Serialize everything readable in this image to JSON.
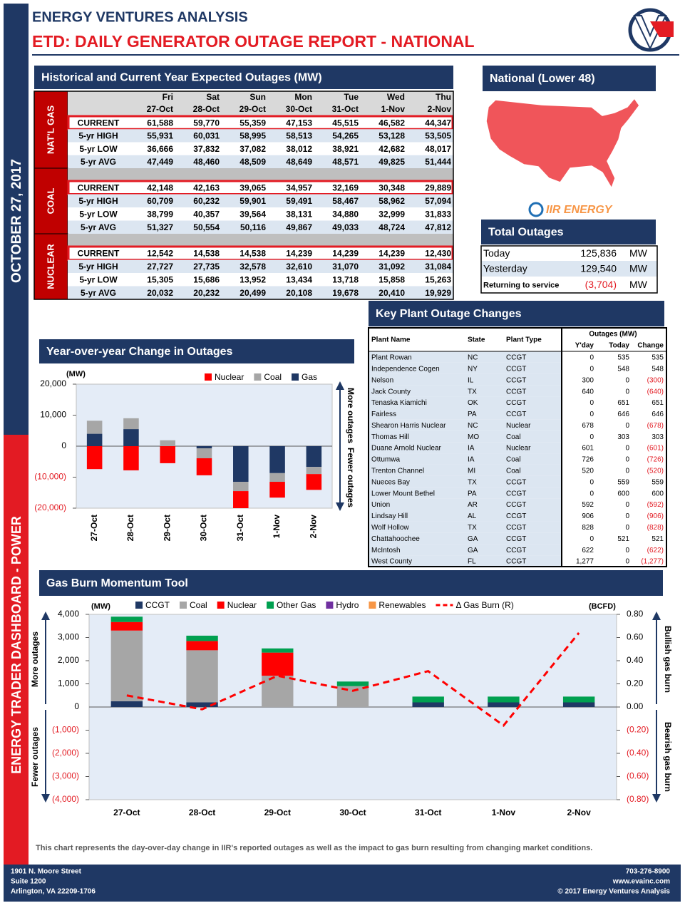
{
  "header": {
    "company": "ENERGY VENTURES ANALYSIS",
    "title": "ETD: DAILY GENERATOR OUTAGE REPORT - NATIONAL"
  },
  "sidebar": {
    "date": "OCTOBER 27, 2017",
    "dashboard": "ENERGY TRADER DASHBOARD - POWER"
  },
  "outage_table": {
    "title": "Historical and Current Year Expected Outages (MW)",
    "days": [
      "Fri",
      "Sat",
      "Sun",
      "Mon",
      "Tue",
      "Wed",
      "Thu"
    ],
    "dates": [
      "27-Oct",
      "28-Oct",
      "29-Oct",
      "30-Oct",
      "31-Oct",
      "1-Nov",
      "2-Nov"
    ],
    "groups": [
      {
        "label": "NAT'L GAS",
        "rows": [
          {
            "label": "CURRENT",
            "values": [
              "61,588",
              "59,770",
              "55,359",
              "47,153",
              "45,515",
              "46,582",
              "44,347"
            ]
          },
          {
            "label": "5-yr HIGH",
            "values": [
              "55,931",
              "60,031",
              "58,995",
              "58,513",
              "54,265",
              "53,128",
              "53,505"
            ]
          },
          {
            "label": "5-yr LOW",
            "values": [
              "36,666",
              "37,832",
              "37,082",
              "38,012",
              "38,921",
              "42,682",
              "48,017"
            ]
          },
          {
            "label": "5-yr AVG",
            "values": [
              "47,449",
              "48,460",
              "48,509",
              "48,649",
              "48,571",
              "49,825",
              "51,444"
            ]
          }
        ]
      },
      {
        "label": "COAL",
        "rows": [
          {
            "label": "CURRENT",
            "values": [
              "42,148",
              "42,163",
              "39,065",
              "34,957",
              "32,169",
              "30,348",
              "29,889"
            ]
          },
          {
            "label": "5-yr HIGH",
            "values": [
              "60,709",
              "60,232",
              "59,901",
              "59,491",
              "58,467",
              "58,962",
              "57,094"
            ]
          },
          {
            "label": "5-yr LOW",
            "values": [
              "38,799",
              "40,357",
              "39,564",
              "38,131",
              "34,880",
              "32,999",
              "31,833"
            ]
          },
          {
            "label": "5-yr AVG",
            "values": [
              "51,327",
              "50,554",
              "50,116",
              "49,867",
              "49,033",
              "48,724",
              "47,812"
            ]
          }
        ]
      },
      {
        "label": "NUCLEAR",
        "rows": [
          {
            "label": "CURRENT",
            "values": [
              "12,542",
              "14,538",
              "14,538",
              "14,239",
              "14,239",
              "14,239",
              "12,430"
            ]
          },
          {
            "label": "5-yr HIGH",
            "values": [
              "27,727",
              "27,735",
              "32,578",
              "32,610",
              "31,070",
              "31,092",
              "31,084"
            ]
          },
          {
            "label": "5-yr LOW",
            "values": [
              "15,305",
              "15,686",
              "13,952",
              "13,434",
              "13,718",
              "15,858",
              "15,263"
            ]
          },
          {
            "label": "5-yr AVG",
            "values": [
              "20,032",
              "20,232",
              "20,499",
              "20,108",
              "19,678",
              "20,410",
              "19,929"
            ]
          }
        ]
      }
    ]
  },
  "map_panel": {
    "title": "National (Lower 48)",
    "logo_text": "IIR ENERGY"
  },
  "total_outages": {
    "title": "Total Outages",
    "rows": [
      {
        "label": "Today",
        "value": "125,836",
        "unit": "MW"
      },
      {
        "label": "Yesterday",
        "value": "129,540",
        "unit": "MW"
      },
      {
        "label": "Returning to service",
        "value": "(3,704)",
        "unit": "MW"
      }
    ]
  },
  "key_plants": {
    "title": "Key Plant Outage Changes",
    "columns": [
      "Plant Name",
      "State",
      "Plant Type"
    ],
    "group_header": "Outages (MW)",
    "value_columns": [
      "Y'day",
      "Today",
      "Change"
    ],
    "rows": [
      [
        "Plant Rowan",
        "NC",
        "CCGT",
        "0",
        "535",
        "535"
      ],
      [
        "Independence Cogen",
        "NY",
        "CCGT",
        "0",
        "548",
        "548"
      ],
      [
        "Nelson",
        "IL",
        "CCGT",
        "300",
        "0",
        "(300)"
      ],
      [
        "Jack County",
        "TX",
        "CCGT",
        "640",
        "0",
        "(640)"
      ],
      [
        "Tenaska Kiamichi",
        "OK",
        "CCGT",
        "0",
        "651",
        "651"
      ],
      [
        "Fairless",
        "PA",
        "CCGT",
        "0",
        "646",
        "646"
      ],
      [
        "Shearon Harris Nuclear",
        "NC",
        "Nuclear",
        "678",
        "0",
        "(678)"
      ],
      [
        "Thomas Hill",
        "MO",
        "Coal",
        "0",
        "303",
        "303"
      ],
      [
        "Duane Arnold Nuclear",
        "IA",
        "Nuclear",
        "601",
        "0",
        "(601)"
      ],
      [
        "Ottumwa",
        "IA",
        "Coal",
        "726",
        "0",
        "(726)"
      ],
      [
        "Trenton Channel",
        "MI",
        "Coal",
        "520",
        "0",
        "(520)"
      ],
      [
        "Nueces Bay",
        "TX",
        "CCGT",
        "0",
        "559",
        "559"
      ],
      [
        "Lower Mount Bethel",
        "PA",
        "CCGT",
        "0",
        "600",
        "600"
      ],
      [
        "Union",
        "AR",
        "CCGT",
        "592",
        "0",
        "(592)"
      ],
      [
        "Lindsay Hill",
        "AL",
        "CCGT",
        "906",
        "0",
        "(906)"
      ],
      [
        "Wolf Hollow",
        "TX",
        "CCGT",
        "828",
        "0",
        "(828)"
      ],
      [
        "Chattahoochee",
        "GA",
        "CCGT",
        "0",
        "521",
        "521"
      ],
      [
        "McIntosh",
        "GA",
        "CCGT",
        "622",
        "0",
        "(622)"
      ],
      [
        "West County",
        "FL",
        "CCGT",
        "1,277",
        "0",
        "(1,277)"
      ]
    ]
  },
  "chart_data": [
    {
      "type": "bar",
      "stacked": true,
      "stack_from": "last",
      "title": "Year-over-year Change in Outages",
      "y_label": "(MW)",
      "categories": [
        "27-Oct",
        "28-Oct",
        "29-Oct",
        "30-Oct",
        "31-Oct",
        "1-Nov",
        "2-Nov"
      ],
      "series": [
        {
          "name": "Nuclear",
          "color": "#ff0000",
          "values": [
            -7400,
            -7800,
            -5500,
            -5500,
            -5500,
            -5100,
            -5100
          ]
        },
        {
          "name": "Coal",
          "color": "#a6a6a6",
          "values": [
            4200,
            3500,
            1900,
            -3200,
            -3000,
            -2800,
            -2300
          ]
        },
        {
          "name": "Gas",
          "color": "#1f3864",
          "values": [
            4000,
            5500,
            0,
            -700,
            -11500,
            -8700,
            -6700
          ]
        }
      ],
      "ylim": [
        -20000,
        20000
      ],
      "yticks": [
        {
          "value": 20000,
          "label": "20,000"
        },
        {
          "value": 10000,
          "label": "10,000"
        },
        0,
        {
          "value": -10000,
          "label": "(10,000)"
        },
        {
          "value": -20000,
          "label": "(20,000)"
        }
      ],
      "annotations": [
        "More outages",
        "Fewer outages"
      ]
    },
    {
      "type": "bar",
      "stacked": true,
      "title": "Gas Burn Momentum Tool",
      "y_label": "(MW)",
      "y2_label": "(BCFD)",
      "categories": [
        "27-Oct",
        "28-Oct",
        "29-Oct",
        "30-Oct",
        "31-Oct",
        "1-Nov",
        "2-Nov"
      ],
      "series": [
        {
          "name": "CCGT",
          "color": "#1f3864",
          "values": [
            250,
            200,
            0,
            0,
            200,
            200,
            200
          ]
        },
        {
          "name": "Coal",
          "color": "#a6a6a6",
          "values": [
            3050,
            2250,
            1350,
            900,
            0,
            0,
            0
          ]
        },
        {
          "name": "Nuclear",
          "color": "#ff0000",
          "values": [
            370,
            400,
            1000,
            0,
            0,
            0,
            0
          ]
        },
        {
          "name": "Other Gas",
          "color": "#00a050",
          "values": [
            230,
            230,
            180,
            200,
            250,
            250,
            250
          ]
        },
        {
          "name": "Hydro",
          "color": "#7030a0",
          "values": [
            0,
            0,
            0,
            0,
            0,
            0,
            0
          ]
        },
        {
          "name": "Renewables",
          "color": "#f79646",
          "values": [
            0,
            0,
            0,
            0,
            0,
            0,
            0
          ]
        },
        {
          "name": "Δ Gas Burn (R)",
          "type": "line",
          "axis": "y2",
          "dashed": true,
          "color": "#ff0000",
          "values": [
            0.1,
            -0.02,
            0.27,
            0.14,
            0.31,
            -0.16,
            0.64
          ]
        }
      ],
      "ylim": [
        -4000,
        4000
      ],
      "yticks": [
        {
          "value": 4000,
          "label": "4,000"
        },
        {
          "value": 3000,
          "label": "3,000"
        },
        {
          "value": 2000,
          "label": "2,000"
        },
        {
          "value": 1000,
          "label": "1,000"
        },
        0,
        {
          "value": -1000,
          "label": "(1,000)"
        },
        {
          "value": -2000,
          "label": "(2,000)"
        },
        {
          "value": -3000,
          "label": "(3,000)"
        },
        {
          "value": -4000,
          "label": "(4,000)"
        }
      ],
      "y2lim": [
        -0.8,
        0.8
      ],
      "y2ticks": [
        {
          "value": 0.8,
          "label": "0.80"
        },
        {
          "value": 0.6,
          "label": "0.60"
        },
        {
          "value": 0.4,
          "label": "0.40"
        },
        {
          "value": 0.2,
          "label": "0.20"
        },
        {
          "value": 0,
          "label": "0.00"
        },
        {
          "value": -0.2,
          "label": "(0.20)"
        },
        {
          "value": -0.4,
          "label": "(0.40)"
        },
        {
          "value": -0.6,
          "label": "(0.60)"
        },
        {
          "value": -0.8,
          "label": "(0.80)"
        }
      ],
      "annotations": [
        "More outages",
        "Fewer outages",
        "Bullish gas burn",
        "Bearish gas burn"
      ]
    }
  ],
  "footnote": "This chart represents the day-over-day change in IIR's reported outages as well as the impact to gas burn resulting from changing market conditions.",
  "footer": {
    "address": [
      "1901 N. Moore Street",
      "Suite 1200",
      "Arlington, VA 22209-1706"
    ],
    "contact": [
      "703-276-8900",
      "www.evainc.com",
      "© 2017 Energy Ventures Analysis"
    ]
  }
}
